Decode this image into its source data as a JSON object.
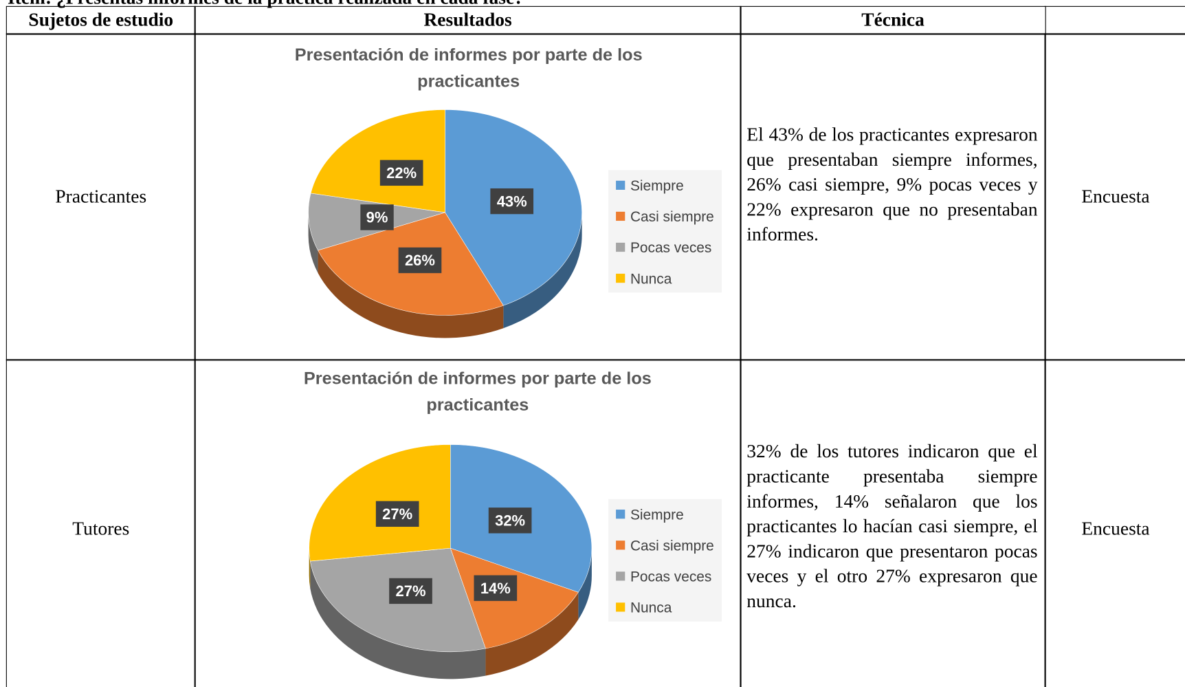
{
  "header_note": "Ítem: ¿Presentas informes de la práctica realizada en cada fase?",
  "table": {
    "headers": [
      "Sujetos de estudio",
      "Resultados",
      "Técnica"
    ],
    "rows": [
      {
        "subject": "Practicantes",
        "chart": {
          "type": "pie",
          "title": "Presentación de informes por parte de los practicantes",
          "categories": [
            "Siempre",
            "Casi siempre",
            "Pocas veces",
            "Nunca"
          ],
          "values": [
            43,
            26,
            9,
            22
          ],
          "value_labels": [
            "43%",
            "26%",
            "9%",
            "22%"
          ],
          "colors": [
            "#5b9bd5",
            "#ed7d31",
            "#a5a5a5",
            "#ffc000"
          ]
        },
        "description": "El 43% de los practicantes expresaron que presentaban siempre informes, 26% casi siempre, 9% pocas veces y 22% expresaron que no presentaban informes.",
        "technique": "Encuesta"
      },
      {
        "subject": "Tutores",
        "chart": {
          "type": "pie",
          "title": "Presentación de informes por parte de los practicantes",
          "categories": [
            "Siempre",
            "Casi siempre",
            "Pocas veces",
            "Nunca"
          ],
          "values": [
            32,
            14,
            27,
            27
          ],
          "value_labels": [
            "32%",
            "14%",
            "27%",
            "27%"
          ],
          "colors": [
            "#5b9bd5",
            "#ed7d31",
            "#a5a5a5",
            "#ffc000"
          ]
        },
        "description": "32% de los tutores indicaron que el practicante presentaba siempre informes, 14% señalaron que los practicantes lo hacían casi siempre, el 27% indicaron que presentaron pocas veces y el otro 27% expresaron que nunca.",
        "technique": "Encuesta"
      }
    ]
  }
}
